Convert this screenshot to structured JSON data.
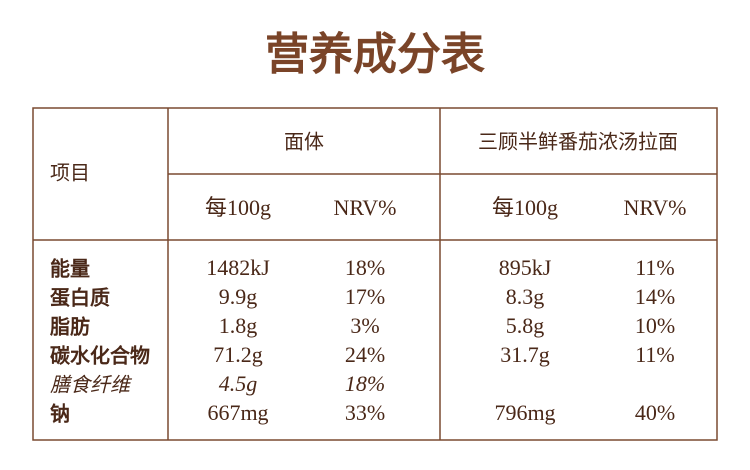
{
  "title": "营养成分表",
  "table": {
    "header": {
      "item": "项目",
      "groups": [
        "面体",
        "三顾半鲜番茄浓汤拉面"
      ],
      "columns": [
        "每100g",
        "NRV%",
        "每100g",
        "NRV%"
      ]
    },
    "rows": [
      {
        "label": "能量",
        "cells": [
          "1482kJ",
          "18%",
          "895kJ",
          "11%"
        ]
      },
      {
        "label": "蛋白质",
        "cells": [
          "9.9g",
          "17%",
          "8.3g",
          "14%"
        ]
      },
      {
        "label": "脂肪",
        "cells": [
          "1.8g",
          "3%",
          "5.8g",
          "10%"
        ]
      },
      {
        "label": "碳水化合物",
        "cells": [
          "71.2g",
          "24%",
          "31.7g",
          "11%"
        ]
      },
      {
        "label": "膳食纤维",
        "cells": [
          "4.5g",
          "18%",
          null,
          null
        ],
        "italic": true
      },
      {
        "label": "钠",
        "cells": [
          "667mg",
          "33%",
          "796mg",
          "40%"
        ]
      }
    ]
  }
}
